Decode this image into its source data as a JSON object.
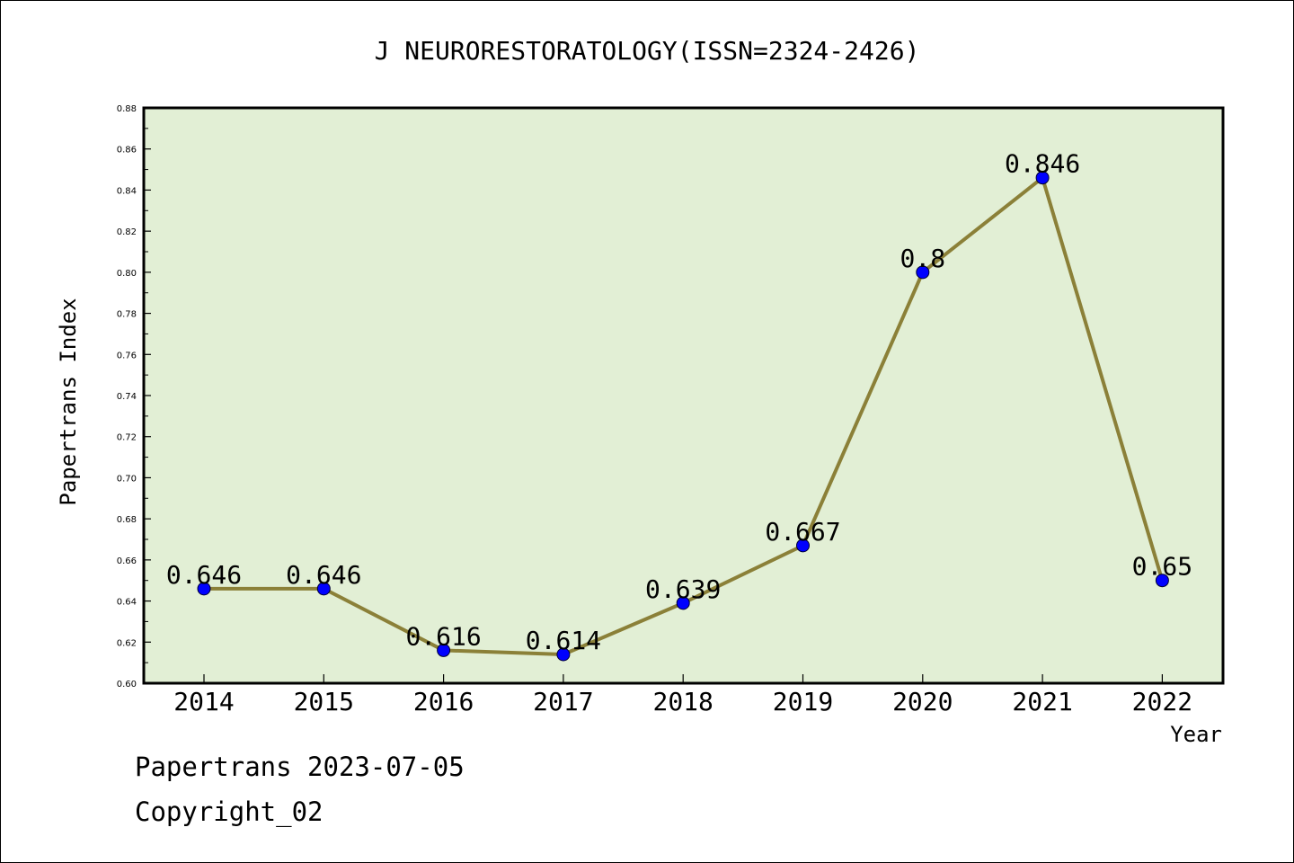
{
  "chart_data": {
    "type": "line",
    "title": "J NEURORESTORATOLOGY(ISSN=2324-2426)",
    "xlabel": "Year",
    "ylabel": "Papertrans Index",
    "categories": [
      "2014",
      "2015",
      "2016",
      "2017",
      "2018",
      "2019",
      "2020",
      "2021",
      "2022"
    ],
    "values": [
      0.646,
      0.646,
      0.616,
      0.614,
      0.639,
      0.667,
      0.8,
      0.846,
      0.65
    ],
    "data_labels": [
      "0.646",
      "0.646",
      "0.616",
      "0.614",
      "0.639",
      "0.667",
      "0.8",
      "0.846",
      "0.65"
    ],
    "ylim": [
      0.6,
      0.88
    ],
    "yticks": [
      "0.60",
      "0.62",
      "0.64",
      "0.66",
      "0.68",
      "0.70",
      "0.72",
      "0.74",
      "0.76",
      "0.78",
      "0.80",
      "0.82",
      "0.84",
      "0.86",
      "0.88"
    ],
    "grid": false,
    "colors": {
      "plot_background": "#e2efd5",
      "line": "#8b8038",
      "marker": "#0000ff"
    }
  },
  "footer": {
    "source_date": "Papertrans 2023-07-05",
    "copyright": "Copyright_02"
  }
}
